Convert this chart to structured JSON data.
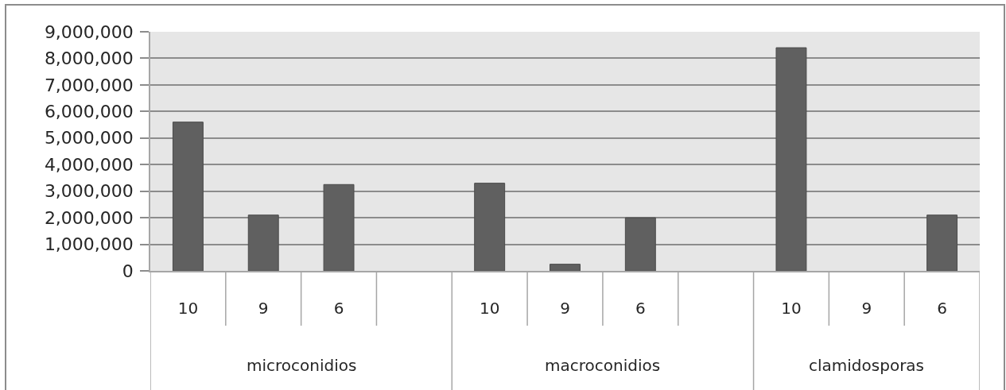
{
  "chart_data": {
    "type": "bar",
    "categories": [
      "10",
      "9",
      "6",
      null,
      "10",
      "9",
      "6",
      null,
      "10",
      "9",
      "6"
    ],
    "values": [
      5600000,
      2100000,
      3250000,
      null,
      3300000,
      250000,
      2000000,
      null,
      8400000,
      null,
      2100000
    ],
    "color": "#606060",
    "ylim": [
      0,
      9000000
    ],
    "yticks": [
      0,
      {
        "value": 1000000,
        "label": "1,000,000"
      },
      {
        "value": 2000000,
        "label": "2,000,000"
      },
      {
        "value": 3000000,
        "label": "3,000,000"
      },
      {
        "value": 4000000,
        "label": "4,000,000"
      },
      {
        "value": 5000000,
        "label": "5,000,000"
      },
      {
        "value": 6000000,
        "label": "6,000,000"
      },
      {
        "value": 7000000,
        "label": "7,000,000"
      },
      {
        "value": 8000000,
        "label": "8,000,000"
      },
      {
        "value": 9000000,
        "label": "9,000,000"
      }
    ],
    "grid": "y",
    "annotations": [
      "microconidios",
      "macroconidios",
      "clamidosporas"
    ]
  }
}
